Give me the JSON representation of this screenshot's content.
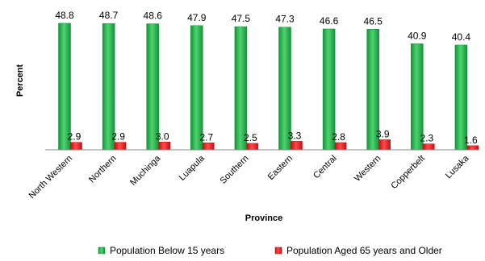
{
  "chart_data": {
    "type": "bar",
    "xlabel": "Province",
    "ylabel": "Percent",
    "ylim": [
      0,
      50
    ],
    "grid": false,
    "legend_position": "bottom",
    "categories": [
      "North Western",
      "Northern",
      "Muchinga",
      "Luapula",
      "Southern",
      "Eastern",
      "Central",
      "Western",
      "Copperbelt",
      "Lusaka"
    ],
    "series": [
      {
        "name": "Population Below 15 years",
        "color": "#1fae4a",
        "values": [
          48.8,
          48.7,
          48.6,
          47.9,
          47.5,
          47.3,
          46.6,
          46.5,
          40.9,
          40.4
        ],
        "labels": [
          "48.8",
          "48.7",
          "48.6",
          "47.9",
          "47.5",
          "47.3",
          "46.6",
          "46.5",
          "40.9",
          "40.4"
        ]
      },
      {
        "name": "Population Aged 65 years and Older",
        "color": "#e8141b",
        "values": [
          2.9,
          2.9,
          3.0,
          2.7,
          2.5,
          3.3,
          2.8,
          3.9,
          2.3,
          1.6
        ],
        "labels": [
          "2.9",
          "2.9",
          "3.0",
          "2.7",
          "2.5",
          "3.3",
          "2.8",
          "3.9",
          "2.3",
          "1.6"
        ]
      }
    ]
  }
}
